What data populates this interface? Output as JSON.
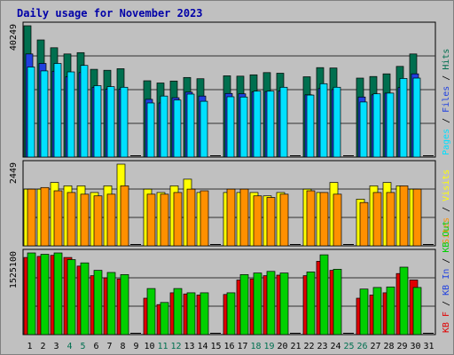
{
  "title": "Daily usage for November 2023",
  "colors": {
    "hits": "#006f4f",
    "files": "#2040e0",
    "pages": "#00e0ff",
    "visits": "#ffff00",
    "sites": "#ff9000",
    "kbin": "#e00000",
    "kbout": "#00d000",
    "weekday": "#000000",
    "weekend": "#007050",
    "grid": "#303030",
    "panel": "#c0c0c0"
  },
  "chart_data": [
    {
      "type": "bar",
      "panel": "hits-files-pages",
      "ymax_label": "40249",
      "ylim": [
        0,
        40249
      ],
      "legend": [
        {
          "text": "Pages",
          "color": "#00e0ff"
        },
        {
          "text": " / ",
          "color": "#000000"
        },
        {
          "text": "Files",
          "color": "#2040e0"
        },
        {
          "text": " / ",
          "color": "#000000"
        },
        {
          "text": "Hits",
          "color": "#006f4f"
        }
      ],
      "categories": [
        "1",
        "2",
        "3",
        "4",
        "5",
        "6",
        "7",
        "8",
        "9",
        "10",
        "11",
        "12",
        "13",
        "14",
        "15",
        "16",
        "17",
        "18",
        "19",
        "20",
        "21",
        "22",
        "23",
        "24",
        "25",
        "26",
        "27",
        "28",
        "29",
        "30",
        "31"
      ],
      "series": [
        {
          "name": "Hits",
          "color": "#006f4f",
          "values": [
            40249,
            35900,
            33500,
            31600,
            32000,
            26900,
            26600,
            27100,
            0,
            23400,
            22700,
            23300,
            24400,
            24000,
            0,
            24900,
            24800,
            25200,
            25900,
            25700,
            0,
            24600,
            27400,
            27300,
            0,
            24200,
            24700,
            25500,
            27800,
            31600,
            0
          ]
        },
        {
          "name": "Files",
          "color": "#2040e0",
          "values": [
            31600,
            28700,
            26300,
            24600,
            25900,
            21400,
            20800,
            20800,
            0,
            17700,
            16600,
            18200,
            19900,
            18700,
            0,
            19500,
            19400,
            20000,
            20100,
            20300,
            0,
            19100,
            21000,
            20700,
            0,
            18400,
            19100,
            19600,
            21300,
            25500,
            0
          ]
        },
        {
          "name": "Pages",
          "color": "#00e0ff",
          "values": [
            27600,
            26400,
            28700,
            26100,
            28100,
            21900,
            21600,
            21400,
            0,
            16600,
            18700,
            17500,
            19300,
            17100,
            0,
            18500,
            18400,
            20200,
            20200,
            21400,
            0,
            19000,
            22500,
            21400,
            0,
            16900,
            19400,
            19600,
            24100,
            24200,
            0
          ]
        }
      ]
    },
    {
      "type": "bar",
      "panel": "visits-sites",
      "ymax_label": "2449",
      "ylim": [
        0,
        2449
      ],
      "legend": [
        {
          "text": "Sites",
          "color": "#ff9000"
        },
        {
          "text": " / ",
          "color": "#000000"
        },
        {
          "text": "Visits",
          "color": "#ffff00"
        }
      ],
      "categories": [
        "1",
        "2",
        "3",
        "4",
        "5",
        "6",
        "7",
        "8",
        "9",
        "10",
        "11",
        "12",
        "13",
        "14",
        "15",
        "16",
        "17",
        "18",
        "19",
        "20",
        "21",
        "22",
        "23",
        "24",
        "25",
        "26",
        "27",
        "28",
        "29",
        "30",
        "31"
      ],
      "series": [
        {
          "name": "Visits",
          "color": "#ffff00",
          "values": [
            1700,
            1700,
            1900,
            1800,
            1800,
            1600,
            1800,
            2449,
            0,
            1700,
            1600,
            1800,
            2000,
            1600,
            0,
            1600,
            1600,
            1600,
            1500,
            1600,
            0,
            1700,
            1600,
            1900,
            0,
            1400,
            1800,
            1900,
            1800,
            1700,
            0
          ]
        },
        {
          "name": "Sites",
          "color": "#ff9000",
          "values": [
            1700,
            1750,
            1650,
            1600,
            1550,
            1500,
            1550,
            1800,
            0,
            1550,
            1550,
            1600,
            1700,
            1650,
            0,
            1700,
            1700,
            1500,
            1450,
            1550,
            0,
            1650,
            1600,
            1550,
            0,
            1300,
            1600,
            1600,
            1800,
            1700,
            0
          ]
        }
      ]
    },
    {
      "type": "bar",
      "panel": "kbin-kbout",
      "ymax_label": "1525100",
      "ylim": [
        0,
        1525100
      ],
      "legend": [
        {
          "text": "KB F",
          "color": "#e00000"
        },
        {
          "text": " / ",
          "color": "#000000"
        },
        {
          "text": "KB In",
          "color": "#2040e0"
        },
        {
          "text": " / ",
          "color": "#000000"
        },
        {
          "text": "KB Out",
          "color": "#00d000"
        }
      ],
      "categories": [
        "1",
        "2",
        "3",
        "4",
        "5",
        "6",
        "7",
        "8",
        "9",
        "10",
        "11",
        "12",
        "13",
        "14",
        "15",
        "16",
        "17",
        "18",
        "19",
        "20",
        "21",
        "22",
        "23",
        "24",
        "25",
        "26",
        "27",
        "28",
        "29",
        "30",
        "31"
      ],
      "series": [
        {
          "name": "KB In",
          "color": "#e00000",
          "values": [
            1440000,
            1460000,
            1480000,
            1440000,
            1280000,
            1100000,
            1060000,
            1040000,
            0,
            680000,
            560000,
            780000,
            760000,
            740000,
            0,
            750000,
            1020000,
            1040000,
            1100000,
            1110000,
            0,
            1100000,
            1370000,
            1200000,
            0,
            680000,
            740000,
            780000,
            1140000,
            1020000,
            0
          ]
        },
        {
          "name": "KB Out",
          "color": "#00d000",
          "values": [
            1525100,
            1500000,
            1525100,
            1400000,
            1340000,
            1200000,
            1160000,
            1120000,
            0,
            860000,
            600000,
            860000,
            780000,
            780000,
            0,
            780000,
            1120000,
            1150000,
            1180000,
            1150000,
            0,
            1170000,
            1490000,
            1220000,
            0,
            850000,
            880000,
            890000,
            1260000,
            880000,
            0
          ]
        }
      ]
    }
  ],
  "x_tick_colors": [
    "#000000",
    "#000000",
    "#000000",
    "#007050",
    "#007050",
    "#000000",
    "#000000",
    "#000000",
    "#000000",
    "#000000",
    "#007050",
    "#007050",
    "#000000",
    "#000000",
    "#000000",
    "#000000",
    "#000000",
    "#007050",
    "#007050",
    "#000000",
    "#000000",
    "#000000",
    "#000000",
    "#000000",
    "#007050",
    "#007050",
    "#000000",
    "#000000",
    "#000000",
    "#000000",
    "#000000"
  ]
}
